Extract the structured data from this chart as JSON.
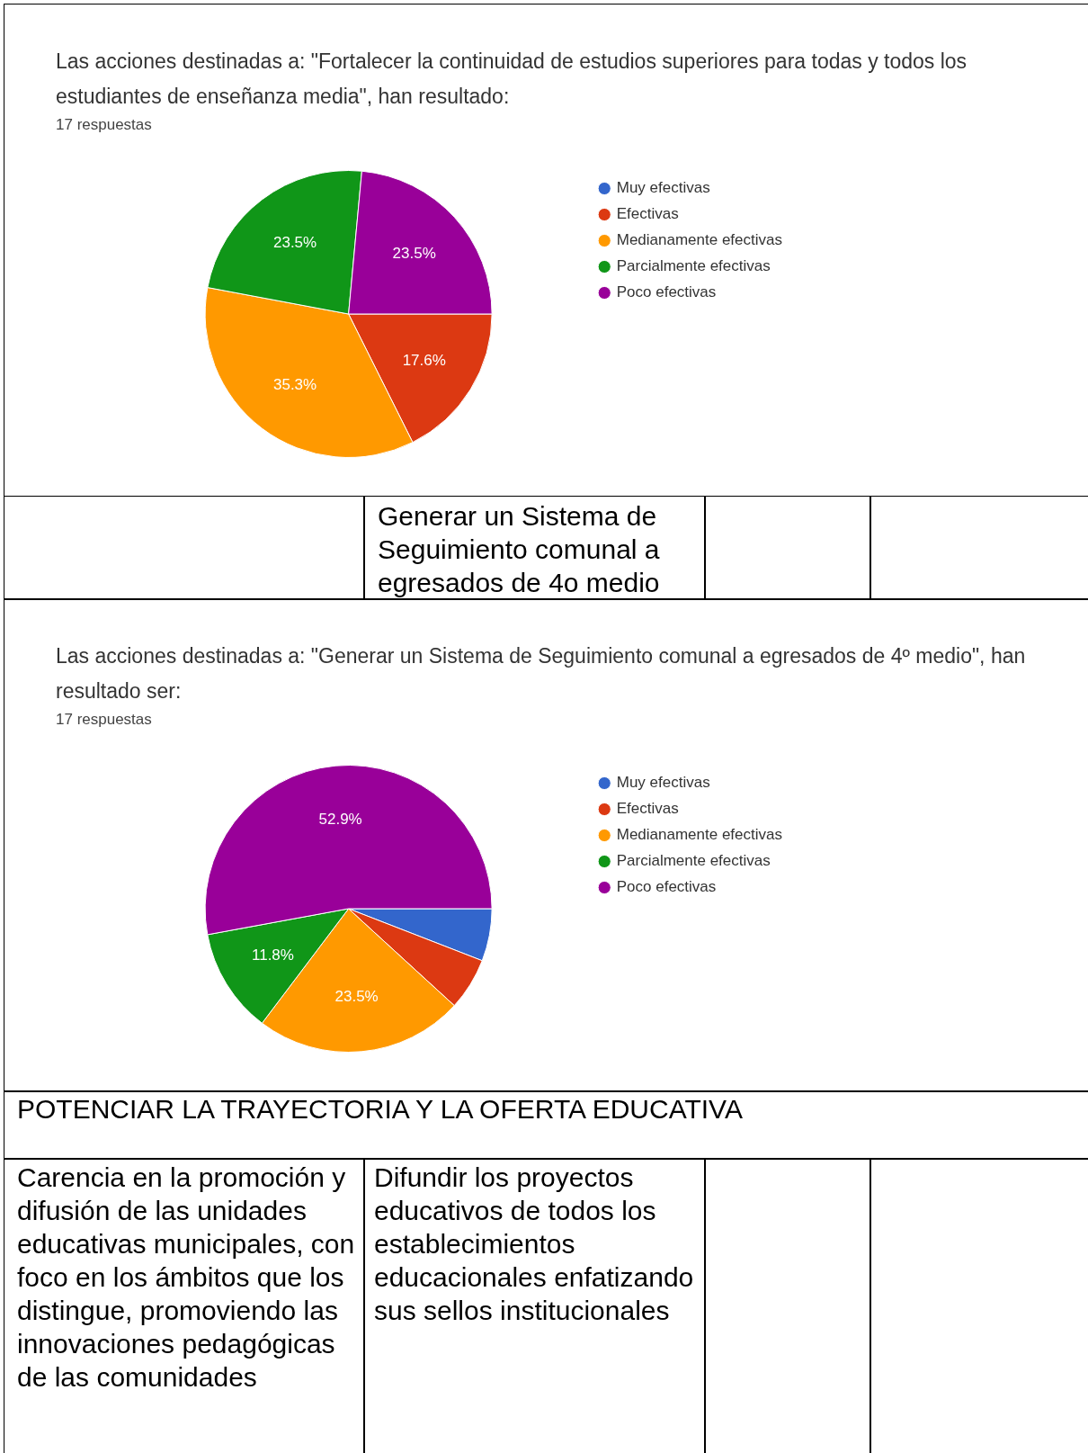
{
  "chart_data": [
    {
      "type": "pie",
      "title": "Las acciones destinadas a: \"Fortalecer la continuidad de estudios superiores para todas y todos los estudiantes de enseñanza media\", han resultado:",
      "subtitle": "17 respuestas",
      "categories": [
        "Muy efectivas",
        "Efectivas",
        "Medianamente efectivas",
        "Parcialmente efectivas",
        "Poco efectivas"
      ],
      "values": [
        0,
        17.6,
        35.3,
        23.5,
        23.5
      ],
      "colors": [
        "#3366cc",
        "#dc3912",
        "#ff9900",
        "#109618",
        "#990099"
      ],
      "value_labels": [
        null,
        "17.6%",
        "35.3%",
        "23.5%",
        "23.5%"
      ],
      "legend": "right",
      "annotations": [
        "Generar un Sistema de Seguimiento comunal a egresados de 4o medio"
      ]
    },
    {
      "type": "pie",
      "title": "Las acciones destinadas a: \"Generar un Sistema de Seguimiento comunal a egresados de 4º medio\", han resultado ser:",
      "subtitle": "17 respuestas",
      "categories": [
        "Muy efectivas",
        "Efectivas",
        "Medianamente efectivas",
        "Parcialmente efectivas",
        "Poco efectivas"
      ],
      "values": [
        5.9,
        5.9,
        23.5,
        11.8,
        52.9
      ],
      "colors": [
        "#3366cc",
        "#dc3912",
        "#ff9900",
        "#109618",
        "#990099"
      ],
      "value_labels": [
        null,
        null,
        "23.5%",
        "11.8%",
        "52.9%"
      ],
      "legend": "right",
      "annotations": [
        "POTENCIAR LA TRAYECTORIA Y LA OFERTA EDUCATIVA",
        "Carencia en la promoción y difusión de las unidades educativas municipales, con foco en los ámbitos que los distingue, promoviendo las innovaciones pedagógicas de las comunidades",
        "Difundir los proyectos educativos de todos los establecimientos educacionales enfatizando sus sellos institucionales"
      ]
    }
  ]
}
